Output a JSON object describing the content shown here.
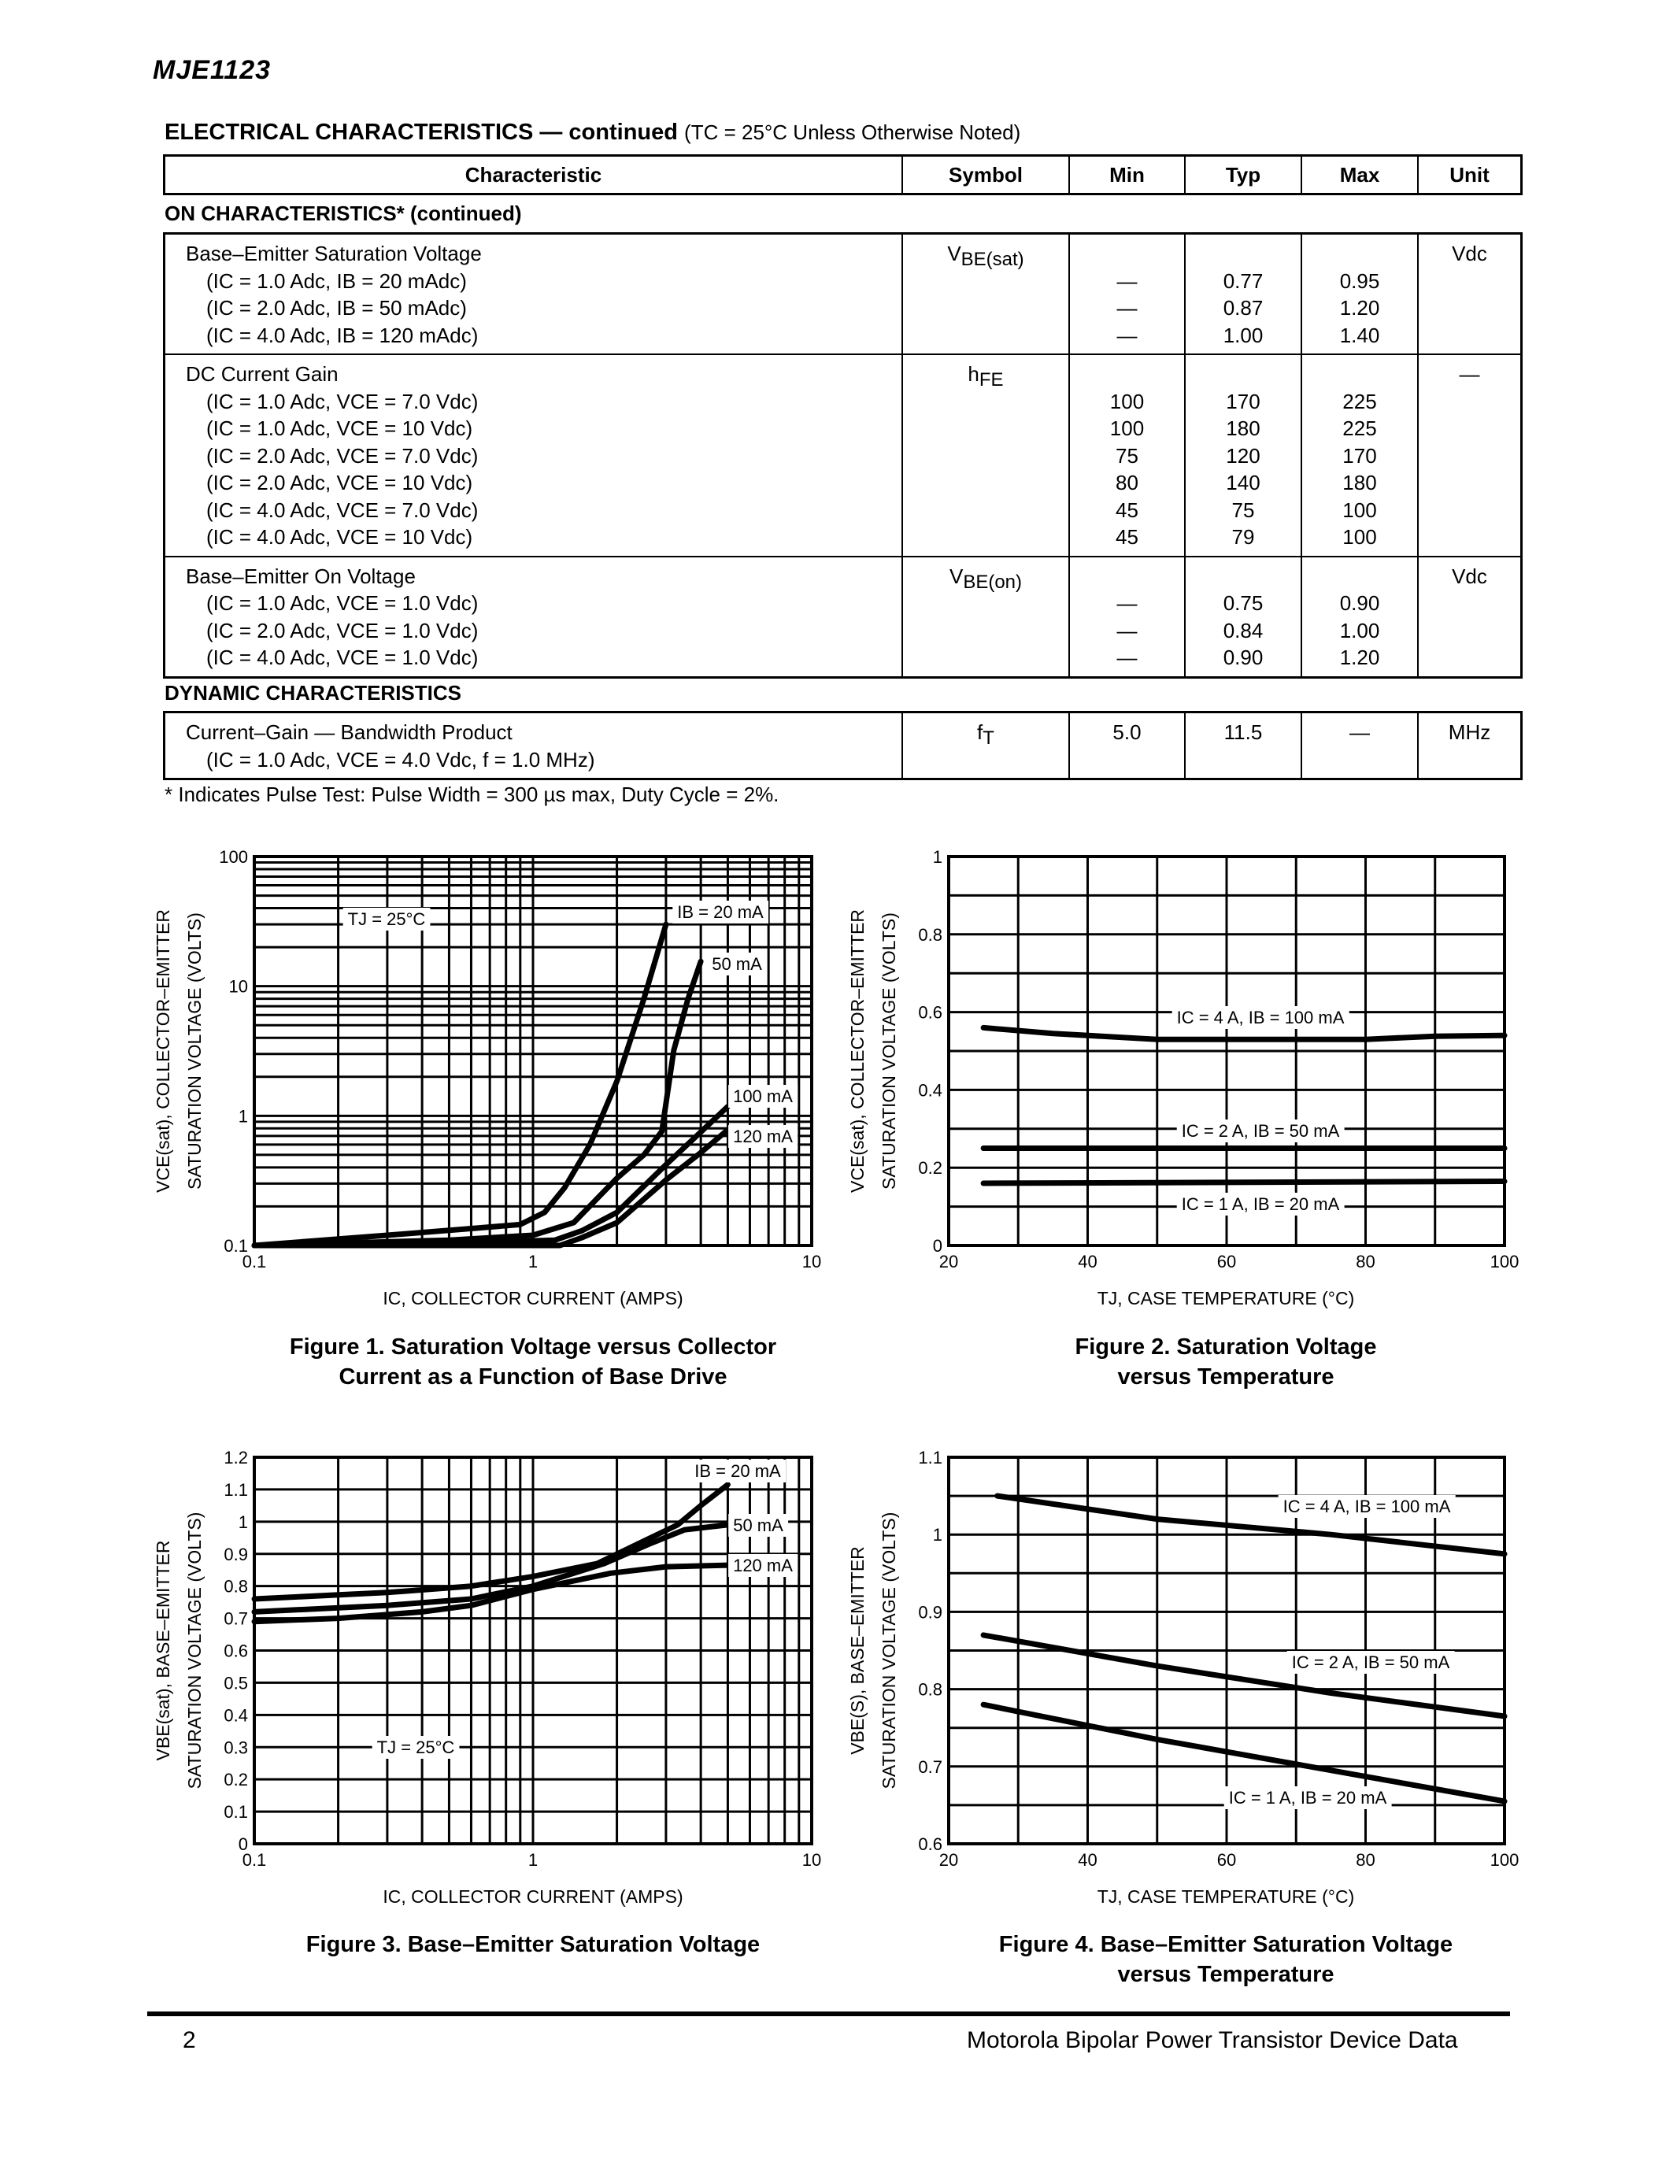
{
  "header": {
    "part_number": "MJE1123"
  },
  "table": {
    "title_bold": "ELECTRICAL CHARACTERISTICS — continued",
    "title_condition": "(TC = 25°C Unless Otherwise Noted)",
    "headers": [
      "Characteristic",
      "Symbol",
      "Min",
      "Typ",
      "Max",
      "Unit"
    ],
    "sections": [
      {
        "title": "ON CHARACTERISTICS* (continued)",
        "groups": [
          {
            "symbol": {
              "main": "V",
              "sub": "BE(sat)"
            },
            "unit": "Vdc",
            "lines": [
              {
                "text": "Base–Emitter Saturation Voltage",
                "min": "",
                "typ": "",
                "max": ""
              },
              {
                "text": "(IC = 1.0 Adc, IB = 20 mAdc)",
                "min": "—",
                "typ": "0.77",
                "max": "0.95"
              },
              {
                "text": "(IC = 2.0 Adc, IB = 50 mAdc)",
                "min": "—",
                "typ": "0.87",
                "max": "1.20"
              },
              {
                "text": "(IC = 4.0 Adc, IB = 120 mAdc)",
                "min": "—",
                "typ": "1.00",
                "max": "1.40"
              }
            ]
          },
          {
            "symbol": {
              "main": "h",
              "sub": "FE"
            },
            "unit": "—",
            "lines": [
              {
                "text": "DC Current Gain",
                "min": "",
                "typ": "",
                "max": ""
              },
              {
                "text": "(IC = 1.0 Adc, VCE = 7.0 Vdc)",
                "min": "100",
                "typ": "170",
                "max": "225"
              },
              {
                "text": "(IC = 1.0 Adc, VCE = 10 Vdc)",
                "min": "100",
                "typ": "180",
                "max": "225"
              },
              {
                "text": "(IC = 2.0 Adc, VCE = 7.0 Vdc)",
                "min": "75",
                "typ": "120",
                "max": "170"
              },
              {
                "text": "(IC = 2.0 Adc, VCE = 10 Vdc)",
                "min": "80",
                "typ": "140",
                "max": "180"
              },
              {
                "text": "(IC = 4.0 Adc, VCE = 7.0 Vdc)",
                "min": "45",
                "typ": "75",
                "max": "100"
              },
              {
                "text": "(IC = 4.0 Adc, VCE = 10 Vdc)",
                "min": "45",
                "typ": "79",
                "max": "100"
              }
            ]
          },
          {
            "symbol": {
              "main": "V",
              "sub": "BE(on)"
            },
            "unit": "Vdc",
            "lines": [
              {
                "text": "Base–Emitter On Voltage",
                "min": "",
                "typ": "",
                "max": ""
              },
              {
                "text": "(IC = 1.0 Adc, VCE = 1.0 Vdc)",
                "min": "—",
                "typ": "0.75",
                "max": "0.90"
              },
              {
                "text": "(IC = 2.0 Adc, VCE = 1.0 Vdc)",
                "min": "—",
                "typ": "0.84",
                "max": "1.00"
              },
              {
                "text": "(IC = 4.0 Adc, VCE = 1.0 Vdc)",
                "min": "—",
                "typ": "0.90",
                "max": "1.20"
              }
            ]
          }
        ]
      },
      {
        "title": "DYNAMIC CHARACTERISTICS",
        "groups": [
          {
            "symbol": {
              "main": "f",
              "sub": "T"
            },
            "unit": "MHz",
            "lines": [
              {
                "text": "Current–Gain — Bandwidth Product",
                "min": "5.0",
                "typ": "11.5",
                "max": "—"
              },
              {
                "text": "(IC = 1.0 Adc, VCE = 4.0 Vdc, f = 1.0 MHz)",
                "min": "",
                "typ": "",
                "max": ""
              }
            ]
          }
        ]
      }
    ],
    "footnote": "* Indicates Pulse Test: Pulse Width = 300 µs max, Duty Cycle = 2%."
  },
  "footer": {
    "page_number": "2",
    "publication": "Motorola Bipolar Power Transistor Device Data"
  },
  "chart_data": [
    {
      "type": "line",
      "caption": [
        "Figure 1. Saturation Voltage versus Collector",
        "Current as a Function of Base Drive"
      ],
      "xlabel": "IC, COLLECTOR CURRENT (AMPS)",
      "ylabel": [
        "VCE(sat), COLLECTOR–EMITTER",
        "SATURATION VOLTAGE (VOLTS)"
      ],
      "xscale": "log",
      "yscale": "log",
      "xlim": [
        0.1,
        10
      ],
      "ylim": [
        0.1,
        100
      ],
      "xticks": [
        "0.1",
        "1",
        "10"
      ],
      "yticks": [
        "0.1",
        "1",
        "10",
        "100"
      ],
      "grid": true,
      "annotations": [
        "TJ = 25°C",
        "IB = 20 mA",
        "50 mA",
        "100 mA",
        "120 mA"
      ],
      "series": [
        {
          "name": "IB = 20 mA",
          "points": [
            [
              0.1,
              0.1
            ],
            [
              0.3,
              0.12
            ],
            [
              0.6,
              0.135
            ],
            [
              0.9,
              0.145
            ],
            [
              1.1,
              0.18
            ],
            [
              1.3,
              0.28
            ],
            [
              1.6,
              0.6
            ],
            [
              2.0,
              1.85
            ],
            [
              2.5,
              8
            ],
            [
              3.0,
              30
            ]
          ]
        },
        {
          "name": "50 mA",
          "points": [
            [
              0.1,
              0.1
            ],
            [
              0.5,
              0.11
            ],
            [
              1.0,
              0.12
            ],
            [
              1.4,
              0.15
            ],
            [
              2.0,
              0.33
            ],
            [
              2.5,
              0.5
            ],
            [
              2.9,
              0.76
            ],
            [
              3.2,
              3.2
            ],
            [
              3.6,
              8
            ],
            [
              4.0,
              15.5
            ]
          ]
        },
        {
          "name": "100 mA",
          "points": [
            [
              0.1,
              0.1
            ],
            [
              0.6,
              0.105
            ],
            [
              1.2,
              0.11
            ],
            [
              1.5,
              0.13
            ],
            [
              2.0,
              0.18
            ],
            [
              3.0,
              0.42
            ],
            [
              4.0,
              0.75
            ],
            [
              5.0,
              1.18
            ]
          ]
        },
        {
          "name": "120 mA",
          "points": [
            [
              0.1,
              0.1
            ],
            [
              0.6,
              0.1
            ],
            [
              1.25,
              0.1
            ],
            [
              1.5,
              0.115
            ],
            [
              2.0,
              0.15
            ],
            [
              3.0,
              0.32
            ],
            [
              4.0,
              0.52
            ],
            [
              5.0,
              0.78
            ]
          ]
        }
      ]
    },
    {
      "type": "line",
      "caption": [
        "Figure 2. Saturation Voltage",
        "versus Temperature"
      ],
      "xlabel": "TJ, CASE TEMPERATURE (°C)",
      "ylabel": [
        "VCE(sat), COLLECTOR–EMITTER",
        "SATURATION VOLTAGE (VOLTS)"
      ],
      "xscale": "linear",
      "yscale": "linear",
      "xlim": [
        20,
        100
      ],
      "ylim": [
        0,
        1
      ],
      "xticks": [
        "20",
        "40",
        "60",
        "80",
        "100"
      ],
      "yticks": [
        "0",
        "0.2",
        "0.4",
        "0.6",
        "0.8",
        "1"
      ],
      "xgrid_step": 10,
      "ygrid_step": 0.1,
      "grid": true,
      "annotations": [
        "IC = 4 A, IB = 100 mA",
        "IC = 2 A, IB = 50 mA",
        "IC = 1 A, IB = 20 mA"
      ],
      "series": [
        {
          "name": "IC = 4 A, IB = 100 mA",
          "points": [
            [
              25,
              0.56
            ],
            [
              35,
              0.545
            ],
            [
              50,
              0.53
            ],
            [
              65,
              0.53
            ],
            [
              80,
              0.53
            ],
            [
              90,
              0.538
            ],
            [
              100,
              0.54
            ]
          ]
        },
        {
          "name": "IC = 2 A, IB = 50 mA",
          "points": [
            [
              25,
              0.25
            ],
            [
              100,
              0.25
            ]
          ]
        },
        {
          "name": "IC = 1 A, IB = 20 mA",
          "points": [
            [
              25,
              0.16
            ],
            [
              100,
              0.165
            ]
          ]
        }
      ]
    },
    {
      "type": "line",
      "caption": [
        "Figure 3. Base–Emitter Saturation Voltage"
      ],
      "xlabel": "IC, COLLECTOR CURRENT (AMPS)",
      "ylabel": [
        "VBE(sat), BASE–EMITTER",
        "SATURATION VOLTAGE (VOLTS)"
      ],
      "xscale": "log",
      "yscale": "linear",
      "xlim": [
        0.1,
        10
      ],
      "ylim": [
        0,
        1.2
      ],
      "xticks": [
        "0.1",
        "1",
        "10"
      ],
      "yticks": [
        "0",
        "0.1",
        "0.2",
        "0.3",
        "0.4",
        "0.5",
        "0.6",
        "0.7",
        "0.8",
        "0.9",
        "1",
        "1.1",
        "1.2"
      ],
      "ygrid_step": 0.1,
      "grid": true,
      "annotations": [
        "IB = 20 mA",
        "50 mA",
        "120 mA",
        "TJ = 25°C"
      ],
      "series": [
        {
          "name": "IB = 20 mA",
          "points": [
            [
              0.1,
              0.76
            ],
            [
              0.3,
              0.78
            ],
            [
              0.6,
              0.8
            ],
            [
              1.0,
              0.83
            ],
            [
              1.7,
              0.87
            ],
            [
              2.5,
              0.94
            ],
            [
              3.3,
              0.99
            ],
            [
              4.0,
              1.05
            ],
            [
              5.0,
              1.115
            ]
          ]
        },
        {
          "name": "50 mA",
          "points": [
            [
              0.1,
              0.72
            ],
            [
              0.3,
              0.74
            ],
            [
              0.6,
              0.76
            ],
            [
              1.0,
              0.8
            ],
            [
              1.8,
              0.87
            ],
            [
              2.6,
              0.93
            ],
            [
              3.5,
              0.975
            ],
            [
              5.0,
              0.99
            ]
          ]
        },
        {
          "name": "120 mA",
          "points": [
            [
              0.1,
              0.69
            ],
            [
              0.2,
              0.7
            ],
            [
              0.4,
              0.72
            ],
            [
              0.6,
              0.74
            ],
            [
              1.0,
              0.79
            ],
            [
              1.9,
              0.84
            ],
            [
              3.0,
              0.86
            ],
            [
              5.0,
              0.865
            ]
          ]
        }
      ]
    },
    {
      "type": "line",
      "caption": [
        "Figure 4. Base–Emitter Saturation Voltage",
        "versus Temperature"
      ],
      "xlabel": "TJ, CASE TEMPERATURE (°C)",
      "ylabel": [
        "VBE(S), BASE–EMITTER",
        "SATURATION VOLTAGE (VOLTS)"
      ],
      "xscale": "linear",
      "yscale": "linear",
      "xlim": [
        20,
        100
      ],
      "ylim": [
        0.6,
        1.1
      ],
      "xticks": [
        "20",
        "40",
        "60",
        "80",
        "100"
      ],
      "yticks": [
        "0.6",
        "0.7",
        "0.8",
        "0.9",
        "1",
        "1.1"
      ],
      "xgrid_step": 10,
      "ygrid_step": 0.05,
      "grid": true,
      "annotations": [
        "IC = 4 A, IB = 100 mA",
        "IC = 2 A, IB = 50 mA",
        "IC = 1 A, IB = 20 mA"
      ],
      "series": [
        {
          "name": "IC = 4 A, IB = 100 mA",
          "points": [
            [
              27,
              1.05
            ],
            [
              50,
              1.02
            ],
            [
              75,
              1.0
            ],
            [
              100,
              0.975
            ]
          ]
        },
        {
          "name": "IC = 2 A, IB = 50 mA",
          "points": [
            [
              25,
              0.87
            ],
            [
              50,
              0.83
            ],
            [
              75,
              0.795
            ],
            [
              100,
              0.765
            ]
          ]
        },
        {
          "name": "IC = 1 A, IB = 20 mA",
          "points": [
            [
              25,
              0.78
            ],
            [
              50,
              0.735
            ],
            [
              75,
              0.695
            ],
            [
              100,
              0.655
            ]
          ]
        }
      ]
    }
  ]
}
